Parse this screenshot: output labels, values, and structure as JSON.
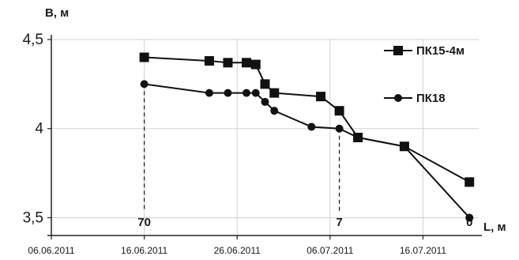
{
  "chart_data": {
    "type": "line",
    "ylabel": "В, м",
    "xlabel": "L, м",
    "ylim": [
      3.4,
      4.5
    ],
    "xlim": [
      "2011-06-06",
      "2011-07-22"
    ],
    "yticks": [
      {
        "value": 4.5,
        "label": "4,5"
      },
      {
        "value": 4.0,
        "label": "4"
      },
      {
        "value": 3.5,
        "label": "3,5"
      }
    ],
    "xticks": [
      {
        "value": "2011-06-06",
        "label": "06.06.2011"
      },
      {
        "value": "2011-06-16",
        "label": "16.06.2011"
      },
      {
        "value": "2011-06-26",
        "label": "26.06.2011"
      },
      {
        "value": "2011-07-06",
        "label": "06.07.2011"
      },
      {
        "value": "2011-07-16",
        "label": "16.07.2011"
      }
    ],
    "grid": true,
    "legend_position": "right",
    "series": [
      {
        "name": "ПК15-4м",
        "marker": "square",
        "color": "#111111",
        "points": [
          {
            "x": "2011-06-16",
            "y": 4.4
          },
          {
            "x": "2011-06-23",
            "y": 4.38
          },
          {
            "x": "2011-06-25",
            "y": 4.37
          },
          {
            "x": "2011-06-27",
            "y": 4.37
          },
          {
            "x": "2011-06-28",
            "y": 4.36
          },
          {
            "x": "2011-06-29",
            "y": 4.25
          },
          {
            "x": "2011-06-30",
            "y": 4.2
          },
          {
            "x": "2011-07-05",
            "y": 4.18
          },
          {
            "x": "2011-07-07",
            "y": 4.1
          },
          {
            "x": "2011-07-09",
            "y": 3.95
          },
          {
            "x": "2011-07-14",
            "y": 3.9
          },
          {
            "x": "2011-07-21",
            "y": 3.7
          }
        ]
      },
      {
        "name": "ПК18",
        "marker": "circle",
        "color": "#111111",
        "points": [
          {
            "x": "2011-06-16",
            "y": 4.25
          },
          {
            "x": "2011-06-23",
            "y": 4.2
          },
          {
            "x": "2011-06-25",
            "y": 4.2
          },
          {
            "x": "2011-06-27",
            "y": 4.2
          },
          {
            "x": "2011-06-28",
            "y": 4.2
          },
          {
            "x": "2011-06-29",
            "y": 4.15
          },
          {
            "x": "2011-06-30",
            "y": 4.1
          },
          {
            "x": "2011-07-04",
            "y": 4.01
          },
          {
            "x": "2011-07-07",
            "y": 4.0
          },
          {
            "x": "2011-07-09",
            "y": 3.95
          },
          {
            "x": "2011-07-14",
            "y": 3.9
          },
          {
            "x": "2011-07-21",
            "y": 3.5
          }
        ]
      }
    ],
    "annotations": [
      {
        "x": "2011-06-16",
        "label": "70"
      },
      {
        "x": "2011-07-07",
        "label": "7"
      },
      {
        "x": "2011-07-21",
        "label": "0"
      }
    ]
  }
}
